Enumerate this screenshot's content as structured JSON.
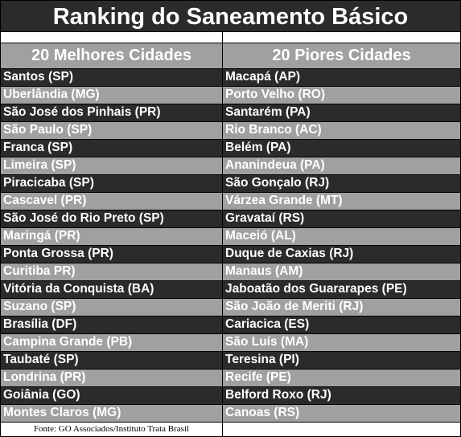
{
  "title": "Ranking do Saneamento Básico",
  "headers": {
    "best": "20 Melhores Cidades",
    "worst": "20 Piores Cidades"
  },
  "rows": [
    {
      "best": "Santos (SP)",
      "worst": "Macapá (AP)"
    },
    {
      "best": "Uberlândia (MG)",
      "worst": "Porto Velho (RO)"
    },
    {
      "best": "São José dos Pinhais (PR)",
      "worst": "Santarém (PA)"
    },
    {
      "best": "São Paulo (SP)",
      "worst": "Rio Branco (AC)"
    },
    {
      "best": "Franca (SP)",
      "worst": "Belém (PA)"
    },
    {
      "best": "Limeira (SP)",
      "worst": "Ananindeua (PA)"
    },
    {
      "best": "Piracicaba (SP)",
      "worst": "São Gonçalo (RJ)"
    },
    {
      "best": "Cascavel (PR)",
      "worst": "Várzea Grande (MT)"
    },
    {
      "best": "São José do Rio Preto (SP)",
      "worst": "Gravataí (RS)"
    },
    {
      "best": "Maringá (PR)",
      "worst": "Maceió (AL)"
    },
    {
      "best": "Ponta Grossa (PR)",
      "worst": "Duque de Caxias (RJ)"
    },
    {
      "best": "Curitiba PR)",
      "worst": "Manaus (AM)"
    },
    {
      "best": "Vitória da Conquista (BA)",
      "worst": "Jaboatão dos Guararapes (PE)"
    },
    {
      "best": "Suzano (SP)",
      "worst": "São João de Meriti (RJ)"
    },
    {
      "best": "Brasília (DF)",
      "worst": "Cariacica (ES)"
    },
    {
      "best": "Campina Grande (PB)",
      "worst": "São Luís (MA)"
    },
    {
      "best": "Taubaté (SP)",
      "worst": "Teresina (PI)"
    },
    {
      "best": "Londrina (PR)",
      "worst": "Recife (PE)"
    },
    {
      "best": "Goiânia (GO)",
      "worst": "Belford Roxo (RJ)"
    },
    {
      "best": "Montes Claros (MG)",
      "worst": "Canoas (RS)"
    }
  ],
  "source": "Fonte: GO Associados/Instituto Trata Brasil",
  "colors": {
    "dark_row": "#2b2b2b",
    "light_row": "#a0a0a0",
    "text": "#ffffff"
  }
}
